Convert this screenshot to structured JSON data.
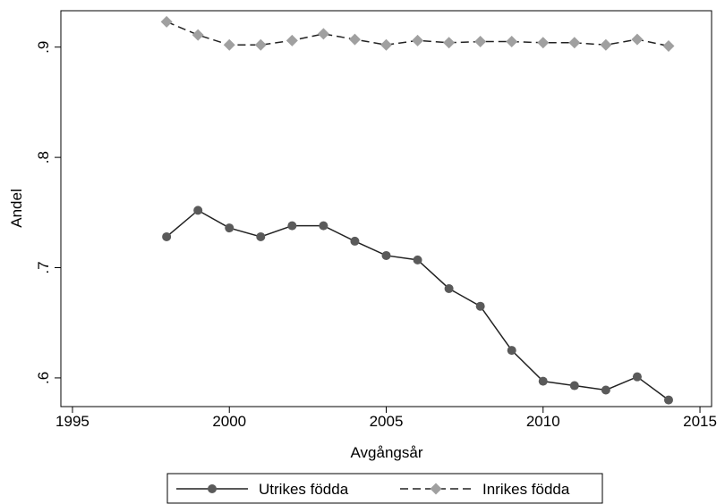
{
  "chart_data": {
    "type": "line",
    "x_label": "Avgångsår",
    "y_label": "Andel",
    "x": [
      1998,
      1999,
      2000,
      2001,
      2002,
      2003,
      2004,
      2005,
      2006,
      2007,
      2008,
      2009,
      2010,
      2011,
      2012,
      2013,
      2014
    ],
    "series": [
      {
        "name": "Utrikes födda",
        "color": "#5a5a5a",
        "line_color": "#222222",
        "marker": "circle",
        "dash": "solid",
        "values": [
          0.728,
          0.752,
          0.736,
          0.728,
          0.738,
          0.738,
          0.724,
          0.711,
          0.707,
          0.681,
          0.665,
          0.625,
          0.597,
          0.593,
          0.589,
          0.601,
          0.58
        ]
      },
      {
        "name": "Inrikes födda",
        "color": "#a0a0a0",
        "line_color": "#222222",
        "marker": "diamond",
        "dash": "dashed",
        "values": [
          0.923,
          0.911,
          0.902,
          0.902,
          0.906,
          0.912,
          0.907,
          0.902,
          0.906,
          0.904,
          0.905,
          0.905,
          0.904,
          0.904,
          0.902,
          0.907,
          0.901
        ]
      }
    ],
    "xlim": [
      1994.63,
      2015.37
    ],
    "xticks": [
      1995,
      2000,
      2005,
      2010,
      2015
    ],
    "ylim": [
      0.574,
      0.933
    ],
    "yticks": [
      {
        "value": 0.6,
        "label": ".6"
      },
      {
        "value": 0.7,
        "label": ".7"
      },
      {
        "value": 0.8,
        "label": ".8"
      },
      {
        "value": 0.9,
        "label": ".9"
      }
    ],
    "grid": false,
    "legend": "bottom"
  }
}
